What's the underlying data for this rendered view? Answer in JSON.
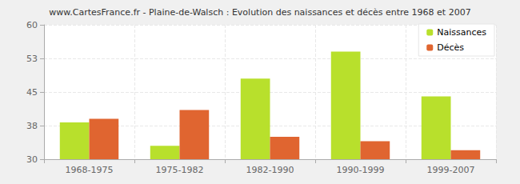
{
  "chart_data": {
    "type": "bar",
    "title": "www.CartesFrance.fr - Plaine-de-Walsch : Evolution des naissances et décès entre 1968 et 2007",
    "categories": [
      "1968-1975",
      "1975-1982",
      "1982-1990",
      "1990-1999",
      "1999-2007"
    ],
    "series": [
      {
        "name": "Naissances",
        "color": "#b8e02c",
        "values": [
          38.2,
          33,
          48,
          54,
          44
        ]
      },
      {
        "name": "Décès",
        "color": "#e06530",
        "values": [
          39,
          41,
          35,
          34,
          32
        ]
      }
    ],
    "ylim": [
      30,
      60
    ],
    "yticks": [
      30,
      {
        "value": 37.5,
        "label": "38"
      },
      45,
      {
        "value": 52.5,
        "label": "53"
      },
      60
    ],
    "grid": true,
    "legend": "upper right"
  }
}
